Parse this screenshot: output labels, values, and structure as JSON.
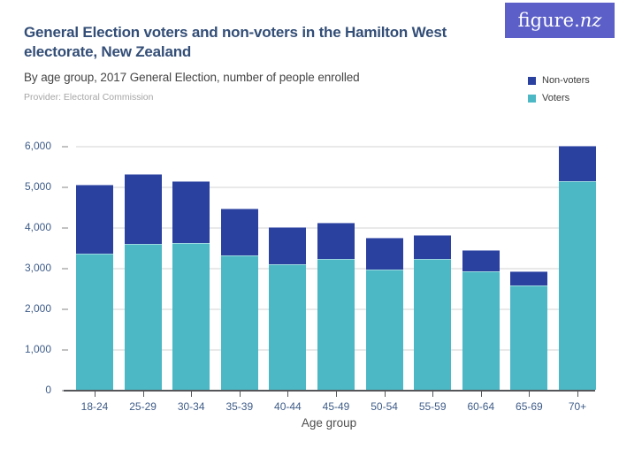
{
  "header": {
    "title_line1": "General Election voters and non-voters in the Hamilton West",
    "title_line2": "electorate, New Zealand",
    "subtitle": "By age group, 2017 General Election, number of people enrolled",
    "provider": "Provider: Electoral Commission",
    "logo_text_main": "figure.",
    "logo_text_suffix": "nz"
  },
  "colors": {
    "logo_background": "#5b5fc7",
    "non_voters": "#2a41a0",
    "voters": "#4cb8c5",
    "title_text": "#334e77",
    "axis_label": "#3e5c88",
    "gridline": "#e9e9e9"
  },
  "legend": [
    {
      "label": "Non-voters",
      "color": "#2a41a0"
    },
    {
      "label": "Voters",
      "color": "#4cb8c5"
    }
  ],
  "chart_data": {
    "type": "bar",
    "stacked": true,
    "title": "General Election voters and non-voters in the Hamilton West electorate, New Zealand",
    "subtitle": "By age group, 2017 General Election, number of people enrolled",
    "xlabel": "Age group",
    "ylabel": "",
    "categories": [
      "18-24",
      "25-29",
      "30-34",
      "35-39",
      "40-44",
      "45-49",
      "50-54",
      "55-59",
      "60-64",
      "65-69",
      "70+"
    ],
    "series": [
      {
        "name": "Voters",
        "color": "#4cb8c5",
        "values": [
          3340,
          3580,
          3600,
          3300,
          3080,
          3210,
          2960,
          3220,
          2910,
          2560,
          5120
        ]
      },
      {
        "name": "Non-voters",
        "color": "#2a41a0",
        "values": [
          1700,
          1730,
          1520,
          1160,
          920,
          900,
          780,
          580,
          530,
          350,
          880
        ]
      }
    ],
    "totals": [
      5040,
      5310,
      5120,
      4460,
      4000,
      4110,
      3740,
      3800,
      3440,
      2910,
      6000
    ],
    "ylim": [
      0,
      6000
    ],
    "yticks": [
      0,
      1000,
      2000,
      3000,
      4000,
      5000,
      6000
    ],
    "ytick_labels": [
      "0",
      "1,000",
      "2,000",
      "3,000",
      "4,000",
      "5,000",
      "6,000"
    ],
    "grid": true,
    "legend_position": "top-right"
  }
}
